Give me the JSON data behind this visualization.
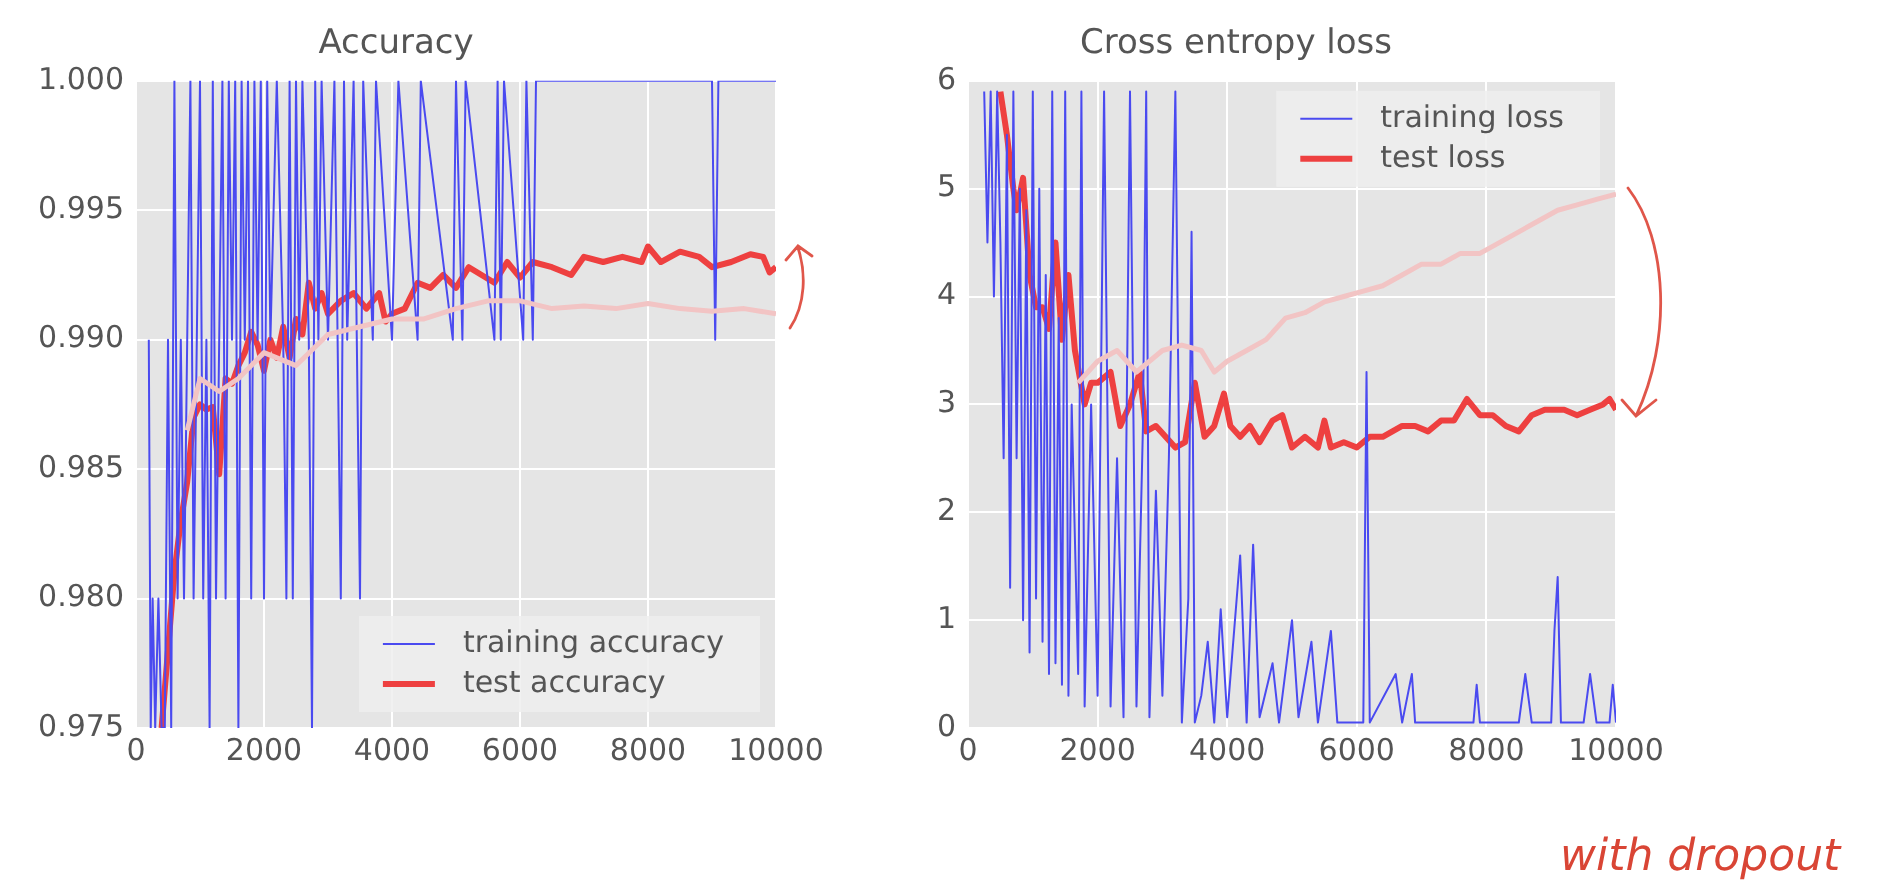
{
  "chart_data": [
    {
      "type": "line",
      "title": "Accuracy",
      "grid": true,
      "legend": "bottom right",
      "xlim": [
        0,
        10000
      ],
      "xticks": [
        0,
        2000,
        4000,
        6000,
        8000,
        10000
      ],
      "ylim": [
        0.975,
        1.0
      ],
      "yticks": [
        {
          "value": 0.975,
          "label": "0.975"
        },
        {
          "value": 0.98,
          "label": "0.980"
        },
        {
          "value": 0.985,
          "label": "0.985"
        },
        {
          "value": 0.99,
          "label": "0.990"
        },
        {
          "value": 0.995,
          "label": "0.995"
        },
        {
          "value": 1.0,
          "label": "1.000"
        }
      ],
      "series": [
        {
          "color": "#f2c4c4",
          "type": "line",
          "x": [
            800,
            1000,
            1300,
            1600,
            2000,
            2500,
            3000,
            3500,
            4000,
            4500,
            5000,
            5500,
            6000,
            6500,
            7000,
            7500,
            8000,
            8500,
            9000,
            9500,
            10000
          ],
          "values": [
            0.9865,
            0.9885,
            0.988,
            0.9885,
            0.9895,
            0.989,
            0.9902,
            0.9905,
            0.9908,
            0.9908,
            0.9912,
            0.9915,
            0.9915,
            0.9912,
            0.9913,
            0.9912,
            0.9914,
            0.9912,
            0.9911,
            0.9912,
            0.991
          ]
        },
        {
          "name": "training accuracy",
          "color": "#4a4af0",
          "type": "line",
          "x": [
            200,
            230,
            260,
            300,
            350,
            400,
            450,
            500,
            550,
            600,
            650,
            700,
            750,
            800,
            850,
            900,
            950,
            1000,
            1050,
            1100,
            1150,
            1200,
            1250,
            1300,
            1350,
            1400,
            1450,
            1500,
            1550,
            1600,
            1650,
            1700,
            1750,
            1800,
            1850,
            1900,
            1950,
            2000,
            2050,
            2100,
            2200,
            2300,
            2350,
            2400,
            2450,
            2500,
            2550,
            2600,
            2700,
            2750,
            2800,
            2850,
            2900,
            3000,
            3100,
            3200,
            3250,
            3300,
            3400,
            3500,
            3550,
            3700,
            3750,
            4000,
            4100,
            4400,
            4450,
            4950,
            5000,
            5100,
            5150,
            5600,
            5650,
            5700,
            5750,
            6050,
            6100,
            6200,
            6250,
            9000,
            9050,
            9100,
            10000
          ],
          "values": [
            0.99,
            0.975,
            0.98,
            0.975,
            0.98,
            0.975,
            0.975,
            0.99,
            0.975,
            1.0,
            0.98,
            0.99,
            0.98,
            0.99,
            1.0,
            0.98,
            0.99,
            1.0,
            0.98,
            0.99,
            0.975,
            1.0,
            0.98,
            0.99,
            1.0,
            0.98,
            1.0,
            0.99,
            1.0,
            0.975,
            1.0,
            0.99,
            1.0,
            0.98,
            1.0,
            0.99,
            1.0,
            0.98,
            1.0,
            0.99,
            1.0,
            0.99,
            0.98,
            1.0,
            0.98,
            1.0,
            0.99,
            1.0,
            0.99,
            0.975,
            1.0,
            0.99,
            1.0,
            0.99,
            1.0,
            0.98,
            1.0,
            0.99,
            1.0,
            0.98,
            1.0,
            0.99,
            1.0,
            0.99,
            1.0,
            0.99,
            1.0,
            0.99,
            1.0,
            0.99,
            1.0,
            0.99,
            1.0,
            0.99,
            1.0,
            0.99,
            1.0,
            0.99,
            1.0,
            1.0,
            0.99,
            1.0,
            1.0
          ]
        },
        {
          "name": "test accuracy",
          "color": "#ee4040",
          "type": "line",
          "x": [
            400,
            500,
            600,
            700,
            800,
            900,
            1000,
            1100,
            1200,
            1300,
            1400,
            1500,
            1600,
            1700,
            1800,
            1900,
            2000,
            2100,
            2200,
            2300,
            2400,
            2500,
            2600,
            2700,
            2800,
            2900,
            3000,
            3200,
            3400,
            3600,
            3800,
            3900,
            4000,
            4200,
            4400,
            4600,
            4800,
            5000,
            5200,
            5400,
            5600,
            5800,
            6000,
            6200,
            6500,
            6800,
            7000,
            7300,
            7600,
            7900,
            8000,
            8200,
            8500,
            8800,
            9000,
            9300,
            9600,
            9800,
            9900,
            10000
          ],
          "values": [
            0.975,
            0.978,
            0.981,
            0.983,
            0.9845,
            0.987,
            0.9875,
            0.9873,
            0.9874,
            0.9848,
            0.9885,
            0.9883,
            0.989,
            0.9895,
            0.9903,
            0.9898,
            0.9888,
            0.99,
            0.9893,
            0.9905,
            0.9893,
            0.9908,
            0.9902,
            0.9922,
            0.9912,
            0.9918,
            0.991,
            0.9915,
            0.9918,
            0.9912,
            0.9918,
            0.9907,
            0.991,
            0.9912,
            0.9922,
            0.992,
            0.9925,
            0.992,
            0.9928,
            0.9925,
            0.9922,
            0.993,
            0.9924,
            0.993,
            0.9928,
            0.9925,
            0.9932,
            0.993,
            0.9932,
            0.993,
            0.9936,
            0.993,
            0.9934,
            0.9932,
            0.9928,
            0.993,
            0.9933,
            0.9932,
            0.9926,
            0.9928
          ]
        }
      ]
    },
    {
      "type": "line",
      "title": "Cross entropy loss",
      "grid": true,
      "legend": "top right",
      "xlim": [
        0,
        10000
      ],
      "xticks": [
        0,
        2000,
        4000,
        6000,
        8000,
        10000
      ],
      "ylim": [
        0,
        6
      ],
      "yticks": [
        0,
        1,
        2,
        3,
        4,
        5,
        6
      ],
      "annotations": [
        "with dropout"
      ],
      "series": [
        {
          "color": "#f2c4c4",
          "type": "line",
          "x": [
            1700,
            2000,
            2300,
            2600,
            2800,
            3000,
            3300,
            3600,
            3800,
            4000,
            4300,
            4600,
            4900,
            5200,
            5500,
            5800,
            6100,
            6400,
            6700,
            7000,
            7300,
            7600,
            7900,
            8200,
            8500,
            8800,
            9100,
            9400,
            9700,
            10000
          ],
          "values": [
            3.2,
            3.4,
            3.5,
            3.3,
            3.4,
            3.5,
            3.55,
            3.5,
            3.3,
            3.4,
            3.5,
            3.6,
            3.8,
            3.85,
            3.95,
            4.0,
            4.05,
            4.1,
            4.2,
            4.3,
            4.3,
            4.4,
            4.4,
            4.5,
            4.6,
            4.7,
            4.8,
            4.85,
            4.9,
            4.95
          ]
        },
        {
          "name": "training loss",
          "color": "#4a4af0",
          "type": "line",
          "x": [
            250,
            300,
            350,
            400,
            450,
            500,
            550,
            600,
            650,
            700,
            750,
            800,
            850,
            900,
            950,
            1000,
            1050,
            1100,
            1150,
            1200,
            1250,
            1300,
            1350,
            1400,
            1450,
            1500,
            1550,
            1600,
            1700,
            1750,
            1800,
            1900,
            2000,
            2100,
            2200,
            2300,
            2400,
            2500,
            2600,
            2700,
            2750,
            2800,
            2900,
            3000,
            3100,
            3200,
            3300,
            3400,
            3450,
            3500,
            3600,
            3700,
            3800,
            3900,
            4000,
            4200,
            4300,
            4400,
            4500,
            4700,
            4800,
            5000,
            5100,
            5300,
            5400,
            5600,
            5700,
            6100,
            6150,
            6200,
            6600,
            6700,
            6850,
            6900,
            7800,
            7850,
            7900,
            8500,
            8600,
            8700,
            9000,
            9050,
            9100,
            9150,
            9500,
            9600,
            9700,
            9900,
            9950,
            10000
          ],
          "values": [
            5.9,
            4.5,
            5.9,
            4.0,
            5.9,
            4.5,
            2.5,
            5.5,
            1.3,
            5.9,
            2.5,
            5.0,
            1.0,
            4.8,
            0.7,
            5.9,
            1.2,
            5.0,
            0.8,
            4.2,
            0.5,
            5.9,
            0.6,
            3.8,
            0.4,
            5.9,
            0.3,
            3.0,
            0.5,
            5.9,
            0.2,
            3.0,
            0.3,
            5.9,
            0.2,
            2.5,
            0.1,
            5.9,
            0.2,
            2.8,
            5.9,
            0.1,
            2.2,
            0.3,
            2.5,
            5.9,
            0.05,
            1.2,
            4.6,
            0.05,
            0.3,
            0.8,
            0.05,
            1.1,
            0.1,
            1.6,
            0.05,
            1.7,
            0.1,
            0.6,
            0.05,
            1.0,
            0.1,
            0.8,
            0.05,
            0.9,
            0.05,
            0.05,
            3.3,
            0.05,
            0.5,
            0.05,
            0.5,
            0.05,
            0.05,
            0.4,
            0.05,
            0.05,
            0.5,
            0.05,
            0.05,
            0.9,
            1.4,
            0.05,
            0.05,
            0.5,
            0.05,
            0.05,
            0.4,
            0.05
          ]
        },
        {
          "name": "test loss",
          "color": "#ee4040",
          "type": "line",
          "x": [
            500,
            600,
            700,
            750,
            850,
            950,
            1050,
            1150,
            1250,
            1350,
            1450,
            1550,
            1650,
            1800,
            1900,
            2000,
            2200,
            2350,
            2500,
            2650,
            2750,
            2900,
            3050,
            3200,
            3350,
            3500,
            3650,
            3800,
            3950,
            4050,
            4200,
            4350,
            4500,
            4700,
            4850,
            5000,
            5200,
            5400,
            5500,
            5600,
            5800,
            6000,
            6200,
            6400,
            6700,
            6900,
            7100,
            7300,
            7500,
            7700,
            7900,
            8100,
            8300,
            8500,
            8700,
            8900,
            9200,
            9400,
            9600,
            9800,
            9900,
            10000
          ],
          "values": [
            5.9,
            5.5,
            5.0,
            4.8,
            5.1,
            4.2,
            3.9,
            3.9,
            3.7,
            4.5,
            3.6,
            4.2,
            3.5,
            3.0,
            3.2,
            3.2,
            3.3,
            2.8,
            3.0,
            3.3,
            2.75,
            2.8,
            2.7,
            2.6,
            2.65,
            3.2,
            2.7,
            2.8,
            3.1,
            2.8,
            2.7,
            2.8,
            2.65,
            2.85,
            2.9,
            2.6,
            2.7,
            2.6,
            2.85,
            2.6,
            2.65,
            2.6,
            2.7,
            2.7,
            2.8,
            2.8,
            2.75,
            2.85,
            2.85,
            3.05,
            2.9,
            2.9,
            2.8,
            2.75,
            2.9,
            2.95,
            2.95,
            2.9,
            2.95,
            3.0,
            3.05,
            2.95
          ]
        }
      ]
    }
  ]
}
